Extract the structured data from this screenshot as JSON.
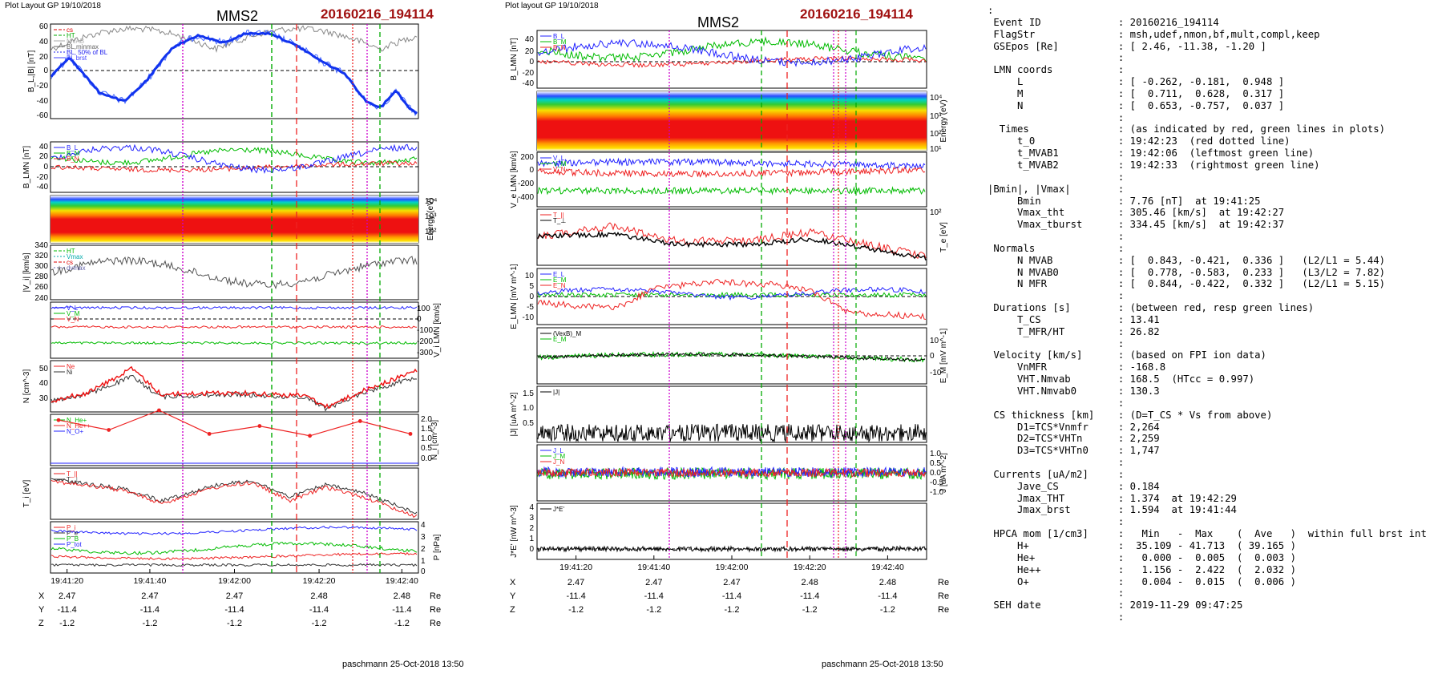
{
  "left_figure": {
    "header": "Plot Layout GP 19/10/2018",
    "title": "MMS2",
    "event": "20160216_194114",
    "footer": "paschmann 25-Oct-2018 13:50",
    "time_ticks": [
      "19:41:20",
      "19:41:40",
      "19:42:00",
      "19:42:20",
      "19:42:40"
    ],
    "pos_rows": [
      {
        "label": "X",
        "values": [
          "2.47",
          "2.47",
          "2.47",
          "2.48",
          "2.48"
        ],
        "unit": "Re"
      },
      {
        "label": "Y",
        "values": [
          "-11.4",
          "-11.4",
          "-11.4",
          "-11.4",
          "-11.4"
        ],
        "unit": "Re"
      },
      {
        "label": "Z",
        "values": [
          "-1.2",
          "-1.2",
          "-1.2",
          "-1.2",
          "-1.2"
        ],
        "unit": "Re"
      }
    ]
  },
  "right_figure": {
    "header": "Plot layout GP 19/10/2018",
    "title": "MMS2",
    "event": "20160216_194114",
    "footer": "paschmann 25-Oct-2018 13:50",
    "time_ticks": [
      "19:41:20",
      "19:41:40",
      "19:42:00",
      "19:42:20",
      "19:42:40"
    ],
    "pos_rows": [
      {
        "label": "X",
        "values": [
          "2.47",
          "2.47",
          "2.47",
          "2.48",
          "2.48"
        ],
        "unit": "Re"
      },
      {
        "label": "Y",
        "values": [
          "-11.4",
          "-11.4",
          "-11.4",
          "-11.4",
          "-11.4"
        ],
        "unit": "Re"
      },
      {
        "label": "Z",
        "values": [
          "-1.2",
          "-1.2",
          "-1.2",
          "-1.2",
          "-1.2"
        ],
        "unit": "Re"
      }
    ]
  },
  "chart_data": [
    {
      "type": "line",
      "title": "MMS2",
      "panels": [
        {
          "ylabel": "B_L,|B| [nT]",
          "yticks": [
            "60",
            "40",
            "20",
            "0",
            "-20",
            "-40",
            "-60"
          ],
          "legend": [
            "cs",
            "HT",
            "MVAB",
            "BL,minmax",
            "BL, 50% of BL",
            "BL brst"
          ]
        },
        {
          "ylabel": "B_LMN [nT]",
          "yticks": [
            "40",
            "20",
            "0",
            "-20",
            "-40"
          ],
          "legend": [
            "B_L",
            "B_M",
            "B_N"
          ]
        },
        {
          "type": "heatmap",
          "ylabel": "Energy (eV)",
          "yticks": [
            "10^4",
            "10^3",
            "10^2"
          ]
        },
        {
          "ylabel": "|V_i| [km/s]",
          "yticks": [
            "340",
            "320",
            "300",
            "280",
            "260",
            "240"
          ],
          "legend": [
            "HT",
            "Vmax",
            "cs",
            "dvmax"
          ]
        },
        {
          "ylabel": "V_i LMN [km/s]",
          "yticks": [
            "100",
            "0",
            "-100",
            "-200",
            "-300"
          ],
          "legend": [
            "V_L",
            "V_M",
            "V_N"
          ]
        },
        {
          "ylabel": "N [cm^-3]",
          "yticks": [
            "50",
            "40",
            "30"
          ],
          "legend": [
            "Ne",
            "Ni"
          ]
        },
        {
          "ylabel": "N_i [cm^-3]",
          "yticks": [
            "2.0",
            "1.5",
            "1.0",
            "0.5",
            "0.0"
          ],
          "legend": [
            "N_He+",
            "N_He++",
            "N_O+"
          ],
          "He_pp_points": [
            1.95,
            1.45,
            2.45,
            1.25,
            1.65,
            1.15,
            1.9,
            1.25
          ]
        },
        {
          "ylabel": "T_i [eV]",
          "legend": [
            "T_||",
            "T_perp"
          ]
        },
        {
          "ylabel": "P [nPa]",
          "yticks": [
            "4",
            "3",
            "2",
            "1",
            "0"
          ],
          "legend": [
            "P_i",
            "P_e",
            "P_B",
            "P_tot"
          ]
        }
      ],
      "xticks": [
        "19:41:20",
        "19:41:40",
        "19:42:00",
        "19:42:20",
        "19:42:40"
      ]
    },
    {
      "type": "line",
      "title": "MMS2",
      "panels": [
        {
          "ylabel": "B_LMN [nT]",
          "yticks": [
            "40",
            "20",
            "0",
            "-20",
            "-40"
          ],
          "legend": [
            "B_L",
            "B_M",
            "B_N"
          ]
        },
        {
          "type": "heatmap",
          "ylabel": "Energy (eV)",
          "yticks": [
            "10^4",
            "10^3",
            "10^2",
            "10^1"
          ]
        },
        {
          "ylabel": "V_e LMN [km/s]",
          "yticks": [
            "200",
            "0",
            "-200",
            "-400"
          ],
          "legend": [
            "V_L",
            "V_M",
            "V_N"
          ]
        },
        {
          "ylabel": "T_e [eV]",
          "yticks": [
            "10^2"
          ],
          "legend": [
            "T_||",
            "T_perp"
          ]
        },
        {
          "ylabel": "E_LMN [mV m^-1]",
          "yticks": [
            "10",
            "5",
            "0",
            "-5",
            "-10"
          ],
          "legend": [
            "E_L",
            "E_M",
            "E_N"
          ]
        },
        {
          "ylabel": "E_M [mV m^-1]",
          "yticks": [
            "10",
            "0",
            "-10"
          ],
          "legend": [
            "(VexB)_M",
            "E_M"
          ]
        },
        {
          "ylabel": "|J| [uA m^-2]",
          "yticks": [
            "1.5",
            "1.0",
            "0.5"
          ],
          "legend": [
            "|J|"
          ]
        },
        {
          "ylabel": "J [uA m^-2]",
          "yticks": [
            "1.0",
            "0.5",
            "0.0",
            "-0.5",
            "-1.0"
          ],
          "legend": [
            "J_L",
            "J_M",
            "J_N"
          ]
        },
        {
          "ylabel": "J*E' [nW m^-3]",
          "yticks": [
            "4",
            "3",
            "2",
            "1",
            "0"
          ],
          "legend": [
            "J*E'"
          ]
        }
      ],
      "xticks": [
        "19:41:20",
        "19:41:40",
        "19:42:00",
        "19:42:20",
        "19:42:40"
      ]
    }
  ],
  "summary_lines": [
    ":",
    " Event ID             : 20160216_194114",
    " FlagStr              : msh,udef,nmon,bf,mult,compl,keep",
    " GSEpos [Re]          : [ 2.46, -11.38, -1.20 ]",
    "                      :",
    " LMN coords           :",
    "     L                : [ -0.262, -0.181,  0.948 ]",
    "     M                : [  0.711,  0.628,  0.317 ]",
    "     N                : [  0.653, -0.757,  0.037 ]",
    "                      :",
    "  Times               : (as indicated by red, green lines in plots)",
    "     t_0              : 19:42:23  (red dotted line)",
    "     t_MVAB1          : 19:42:06  (leftmost green line)",
    "     t_MVAB2          : 19:42:33  (rightmost green line)",
    "                      :",
    "|Bmin|, |Vmax|        :",
    "     Bmin             : 7.76 [nT]  at 19:41:25",
    "     Vmax_tht         : 305.46 [km/s]  at 19:42:27",
    "     Vmax_tburst      : 334.45 [km/s]  at 19:42:37",
    "                      :",
    " Normals              :",
    "     N MVAB           : [  0.843, -0.421,  0.336 ]   (L2/L1 = 5.44)",
    "     N MVAB0          : [  0.778, -0.583,  0.233 ]   (L3/L2 = 7.82)",
    "     N MFR            : [  0.844, -0.422,  0.332 ]   (L2/L1 = 5.15)",
    "                      :",
    " Durations [s]        : (between red, resp green lines)",
    "     T_CS             : 13.41",
    "     T_MFR/HT         : 26.82",
    "                      :",
    " Velocity [km/s]      : (based on FPI ion data)",
    "     VnMFR            : -168.8",
    "     VHT.Nmvab        : 168.5  (HTcc = 0.997)",
    "     VHT.Nmvab0       : 130.3",
    "                      :",
    " CS thickness [km]    : (D=T_CS * Vs from above)",
    "     D1=TCS*Vnmfr     : 2,264",
    "     D2=TCS*VHTn      : 2,259",
    "     D3=TCS*VHTn0     : 1,747",
    "                      :",
    " Currents [uA/m2]     :",
    "     Jave_CS          : 0.184",
    "     Jmax_THT         : 1.374  at 19:42:29",
    "     Jmax_brst        : 1.594  at 19:41:44",
    "                      :",
    " HPCA mom [1/cm3]     :   Min   -  Max    (  Ave   )  within full brst int",
    "     H+               :  35.109 - 41.713  ( 39.165 )",
    "     He+              :   0.000 -  0.005  (  0.003 )",
    "     He++             :   1.156 -  2.422  (  2.032 )",
    "     O+               :   0.004 -  0.015  (  0.006 )",
    "                      :",
    " SEH date             : 2019-11-29 09:47:25",
    "                      :"
  ]
}
